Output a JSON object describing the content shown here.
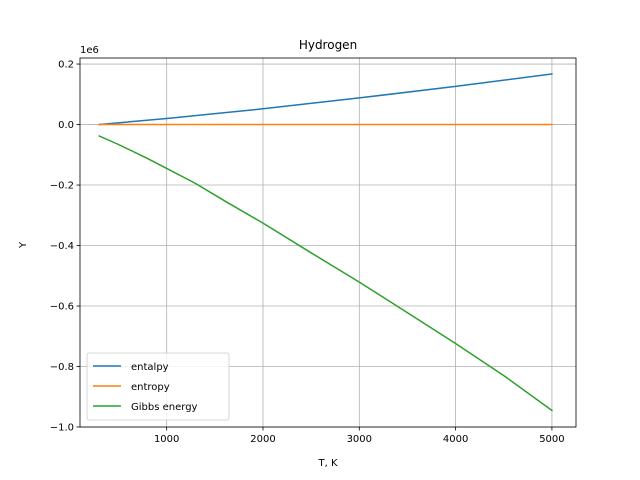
{
  "chart_data": {
    "type": "line",
    "title": "Hydrogen",
    "xlabel": "T, K",
    "ylabel": "Y",
    "y_offset_label": "1e6",
    "xlim": [
      100,
      5250
    ],
    "ylim": [
      -1.0,
      0.22
    ],
    "y_scale_note": "values in units of 1e6",
    "xticks": [
      1000,
      2000,
      3000,
      4000,
      5000
    ],
    "xtick_labels": [
      "1000",
      "2000",
      "3000",
      "4000",
      "5000"
    ],
    "yticks": [
      0.2,
      0.0,
      -0.2,
      -0.4,
      -0.6,
      -0.8,
      -1.0
    ],
    "ytick_labels": [
      "0.2",
      "0.0",
      "−0.2",
      "−0.4",
      "−0.6",
      "−0.8",
      "−1.0"
    ],
    "grid": true,
    "legend_position": "lower-left",
    "series": [
      {
        "name": "entalpy",
        "color": "#1f77b4",
        "x": [
          300,
          1000,
          2000,
          3000,
          4000,
          5000
        ],
        "y": [
          0.0,
          0.02,
          0.052,
          0.088,
          0.126,
          0.167
        ]
      },
      {
        "name": "entropy",
        "color": "#ff7f0e",
        "x": [
          300,
          1000,
          2000,
          3000,
          4000,
          5000
        ],
        "y": [
          0.0,
          0.0,
          0.0,
          0.0,
          0.0,
          0.0
        ]
      },
      {
        "name": "Gibbs energy",
        "color": "#2ca02c",
        "x": [
          300,
          500,
          800,
          1000,
          1300,
          1600,
          2000,
          2500,
          3000,
          3500,
          4000,
          4500,
          5000
        ],
        "y": [
          -0.038,
          -0.066,
          -0.112,
          -0.145,
          -0.195,
          -0.252,
          -0.326,
          -0.424,
          -0.521,
          -0.622,
          -0.724,
          -0.83,
          -0.945
        ]
      }
    ]
  }
}
